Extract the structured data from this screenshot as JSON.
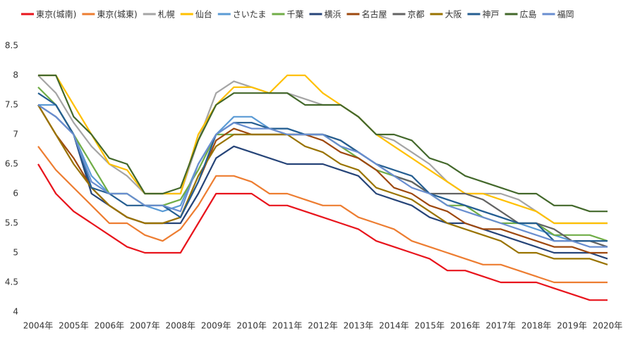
{
  "chart_data": {
    "type": "line",
    "categories": [
      "2004年",
      null,
      "2005年",
      null,
      "2006年",
      null,
      "2007年",
      null,
      "2008年",
      null,
      "2009年",
      null,
      "2010年",
      null,
      "2011年",
      null,
      "2012年",
      null,
      "2013年",
      null,
      "2014年",
      null,
      "2015年",
      null,
      "2016年",
      null,
      "2017年",
      null,
      "2018年",
      null,
      "2019年",
      null,
      "2020年"
    ],
    "ylim": [
      4,
      8.5
    ],
    "yticks": [
      4,
      4.5,
      5,
      5.5,
      6,
      6.5,
      7,
      7.5,
      8,
      8.5
    ],
    "grid": false,
    "legend": "top",
    "series": [
      {
        "name": "東京(城南)",
        "color": "#e8141c",
        "values": [
          6.5,
          6.0,
          5.7,
          5.5,
          5.3,
          5.1,
          5.0,
          5.0,
          5.0,
          5.5,
          6.0,
          6.0,
          6.0,
          5.8,
          5.8,
          5.7,
          5.6,
          5.5,
          5.4,
          5.2,
          5.1,
          5.0,
          4.9,
          4.7,
          4.7,
          4.6,
          4.5,
          4.5,
          4.5,
          4.4,
          4.3,
          4.2,
          4.2
        ]
      },
      {
        "name": "東京(城東)",
        "color": "#ed7d31",
        "values": [
          6.8,
          6.4,
          6.1,
          5.8,
          5.5,
          5.5,
          5.3,
          5.2,
          5.4,
          5.8,
          6.3,
          6.3,
          6.2,
          6.0,
          6.0,
          5.9,
          5.8,
          5.8,
          5.6,
          5.5,
          5.4,
          5.2,
          5.1,
          5.0,
          4.9,
          4.8,
          4.8,
          4.7,
          4.6,
          4.5,
          4.5,
          4.5,
          4.5
        ]
      },
      {
        "name": "札幌",
        "color": "#a5a5a5",
        "values": [
          8.0,
          7.7,
          7.2,
          6.8,
          6.5,
          6.3,
          6.0,
          6.0,
          6.0,
          6.9,
          7.7,
          7.9,
          7.8,
          7.7,
          7.7,
          7.6,
          7.5,
          7.5,
          7.3,
          7.0,
          6.9,
          6.7,
          6.5,
          6.2,
          6.0,
          6.0,
          6.0,
          5.9,
          5.7,
          5.5,
          5.5,
          5.5,
          5.5
        ]
      },
      {
        "name": "仙台",
        "color": "#ffc000",
        "values": [
          8.0,
          8.0,
          7.5,
          7.0,
          6.5,
          6.4,
          6.0,
          6.0,
          6.0,
          7.0,
          7.5,
          7.8,
          7.8,
          7.7,
          8.0,
          8.0,
          7.7,
          7.5,
          7.3,
          7.0,
          6.8,
          6.6,
          6.4,
          6.2,
          6.0,
          6.0,
          5.9,
          5.8,
          5.7,
          5.5,
          5.5,
          5.5,
          5.5
        ]
      },
      {
        "name": "さいたま",
        "color": "#5b9bd5",
        "values": [
          7.5,
          7.5,
          7.0,
          6.3,
          6.0,
          6.0,
          5.8,
          5.7,
          5.8,
          6.5,
          7.0,
          7.3,
          7.3,
          7.1,
          7.1,
          7.0,
          7.0,
          6.8,
          6.7,
          6.5,
          6.3,
          6.2,
          6.0,
          5.9,
          5.8,
          5.7,
          5.6,
          5.5,
          5.4,
          5.3,
          5.2,
          5.2,
          5.2
        ]
      },
      {
        "name": "千葉",
        "color": "#70ad47",
        "values": [
          7.8,
          7.5,
          7.0,
          6.5,
          6.0,
          6.0,
          5.8,
          5.8,
          5.9,
          6.4,
          7.0,
          7.0,
          7.0,
          7.0,
          7.0,
          7.0,
          7.0,
          6.8,
          6.6,
          6.4,
          6.3,
          6.2,
          6.0,
          5.8,
          5.8,
          5.6,
          5.5,
          5.5,
          5.5,
          5.3,
          5.3,
          5.3,
          5.2
        ]
      },
      {
        "name": "横浜",
        "color": "#264478",
        "values": [
          7.5,
          7.3,
          7.0,
          6.0,
          5.8,
          5.6,
          5.5,
          5.5,
          5.5,
          6.0,
          6.6,
          6.8,
          6.7,
          6.6,
          6.5,
          6.5,
          6.5,
          6.4,
          6.3,
          6.0,
          5.9,
          5.8,
          5.6,
          5.5,
          5.5,
          5.4,
          5.3,
          5.2,
          5.1,
          5.0,
          5.0,
          5.0,
          4.9
        ]
      },
      {
        "name": "名古屋",
        "color": "#9e480e",
        "values": [
          7.5,
          7.0,
          6.6,
          6.1,
          5.8,
          5.6,
          5.5,
          5.5,
          5.6,
          6.2,
          6.9,
          7.1,
          7.0,
          7.0,
          7.0,
          7.0,
          6.9,
          6.7,
          6.6,
          6.4,
          6.1,
          6.0,
          5.8,
          5.7,
          5.5,
          5.4,
          5.4,
          5.3,
          5.2,
          5.1,
          5.1,
          5.0,
          5.0
        ]
      },
      {
        "name": "京都",
        "color": "#636363",
        "values": [
          null,
          null,
          null,
          null,
          null,
          null,
          null,
          null,
          null,
          null,
          null,
          null,
          null,
          7.1,
          7.0,
          7.0,
          7.0,
          6.9,
          6.7,
          6.5,
          6.3,
          6.2,
          6.0,
          6.0,
          6.0,
          5.9,
          5.7,
          5.5,
          5.5,
          5.4,
          5.2,
          5.2,
          5.1
        ]
      },
      {
        "name": "大阪",
        "color": "#997300",
        "values": [
          7.5,
          7.0,
          6.5,
          6.1,
          5.8,
          5.6,
          5.5,
          5.5,
          5.6,
          6.3,
          6.8,
          7.0,
          7.0,
          7.0,
          7.0,
          6.8,
          6.7,
          6.5,
          6.4,
          6.1,
          6.0,
          5.9,
          5.7,
          5.5,
          5.4,
          5.3,
          5.2,
          5.0,
          5.0,
          4.9,
          4.9,
          4.9,
          4.8
        ]
      },
      {
        "name": "神戸",
        "color": "#255e91",
        "values": [
          7.7,
          7.5,
          7.0,
          6.1,
          6.0,
          5.8,
          5.8,
          5.8,
          5.6,
          6.2,
          7.0,
          7.2,
          7.2,
          7.1,
          7.1,
          7.0,
          7.0,
          6.9,
          6.7,
          6.5,
          6.4,
          6.3,
          6.0,
          5.9,
          5.8,
          5.7,
          5.6,
          5.5,
          5.5,
          5.2,
          5.2,
          5.2,
          5.2
        ]
      },
      {
        "name": "広島",
        "color": "#43682b",
        "values": [
          8.0,
          8.0,
          7.3,
          7.0,
          6.6,
          6.5,
          6.0,
          6.0,
          6.1,
          6.9,
          7.5,
          7.7,
          7.7,
          7.7,
          7.7,
          7.5,
          7.5,
          7.5,
          7.3,
          7.0,
          7.0,
          6.9,
          6.6,
          6.5,
          6.3,
          6.2,
          6.1,
          6.0,
          6.0,
          5.8,
          5.8,
          5.7,
          5.7
        ]
      },
      {
        "name": "福岡",
        "color": "#698ed0",
        "values": [
          7.5,
          7.3,
          7.0,
          6.2,
          6.0,
          6.0,
          5.8,
          5.8,
          5.7,
          6.5,
          7.0,
          7.2,
          7.1,
          7.1,
          7.0,
          7.0,
          7.0,
          6.8,
          6.7,
          6.5,
          6.3,
          6.1,
          6.0,
          5.8,
          5.7,
          5.6,
          5.5,
          5.4,
          5.3,
          5.2,
          5.2,
          5.1,
          5.1
        ]
      }
    ]
  }
}
